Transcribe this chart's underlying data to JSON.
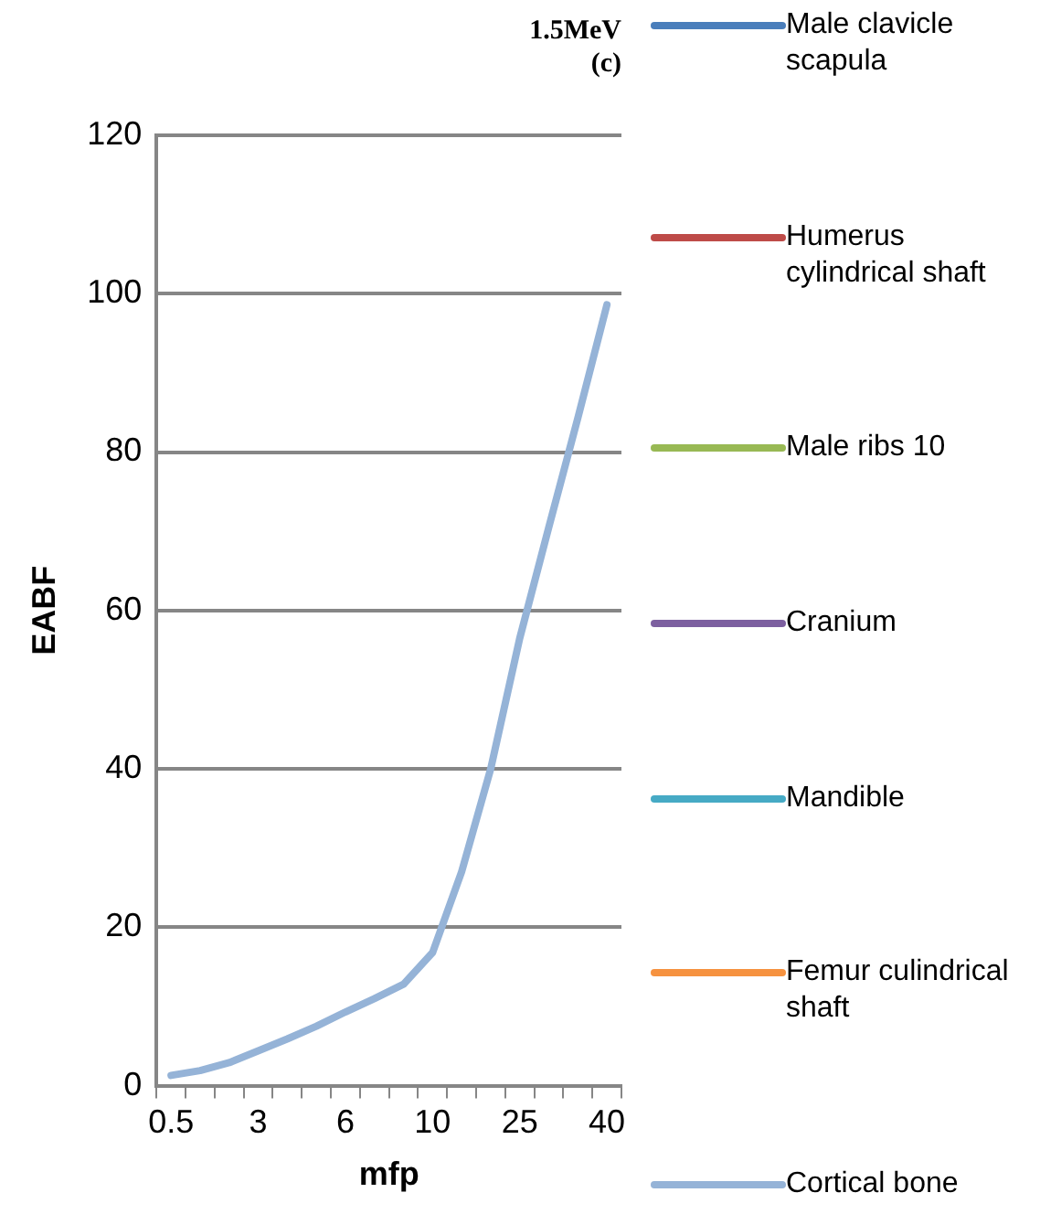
{
  "chart_data": {
    "type": "line",
    "title": "1.5MeV",
    "subtitle": "(c)",
    "xlabel": "mfp",
    "ylabel": "EABF",
    "categories": [
      "0.5",
      null,
      null,
      "3",
      null,
      null,
      "6",
      null,
      null,
      "10",
      null,
      null,
      "25",
      null,
      null,
      "40"
    ],
    "ylim": [
      0,
      120
    ],
    "yticks": [
      0,
      20,
      40,
      60,
      80,
      100,
      120
    ],
    "grid": "y",
    "legend": "right",
    "marker": "none",
    "line_style": "solid",
    "series": [
      {
        "name": "Male clavicle scapula",
        "color": "#4a7ebb",
        "values": [
          null,
          null,
          null,
          null,
          null,
          null,
          null,
          null,
          null,
          null,
          null,
          null,
          null,
          null,
          null,
          null
        ]
      },
      {
        "name": "Humerus cylindrical shaft",
        "color": "#be4b48",
        "values": [
          null,
          null,
          null,
          null,
          null,
          null,
          null,
          null,
          null,
          null,
          null,
          null,
          null,
          null,
          null,
          null
        ]
      },
      {
        "name": "Male ribs 10",
        "color": "#98b954",
        "values": [
          null,
          null,
          null,
          null,
          null,
          null,
          null,
          null,
          null,
          null,
          null,
          null,
          null,
          null,
          null,
          null
        ]
      },
      {
        "name": "Cranium",
        "color": "#7d60a0",
        "values": [
          null,
          null,
          null,
          null,
          null,
          null,
          null,
          null,
          null,
          null,
          null,
          null,
          null,
          null,
          null,
          null
        ]
      },
      {
        "name": "Mandible",
        "color": "#46aac5",
        "values": [
          null,
          null,
          null,
          null,
          null,
          null,
          null,
          null,
          null,
          null,
          null,
          null,
          null,
          null,
          null,
          null
        ]
      },
      {
        "name": "Femur culindrical shaft",
        "color": "#f69240",
        "values": [
          null,
          null,
          null,
          null,
          null,
          null,
          null,
          null,
          null,
          null,
          null,
          null,
          null,
          null,
          null,
          null
        ]
      },
      {
        "name": "Cortical bone",
        "color": "#95b3d7",
        "values": [
          1.3,
          1.9,
          2.9,
          4.4,
          5.9,
          7.5,
          9.3,
          11,
          12.8,
          16.8,
          27,
          40,
          56.5,
          70.5,
          84.3,
          98.6
        ]
      }
    ]
  }
}
